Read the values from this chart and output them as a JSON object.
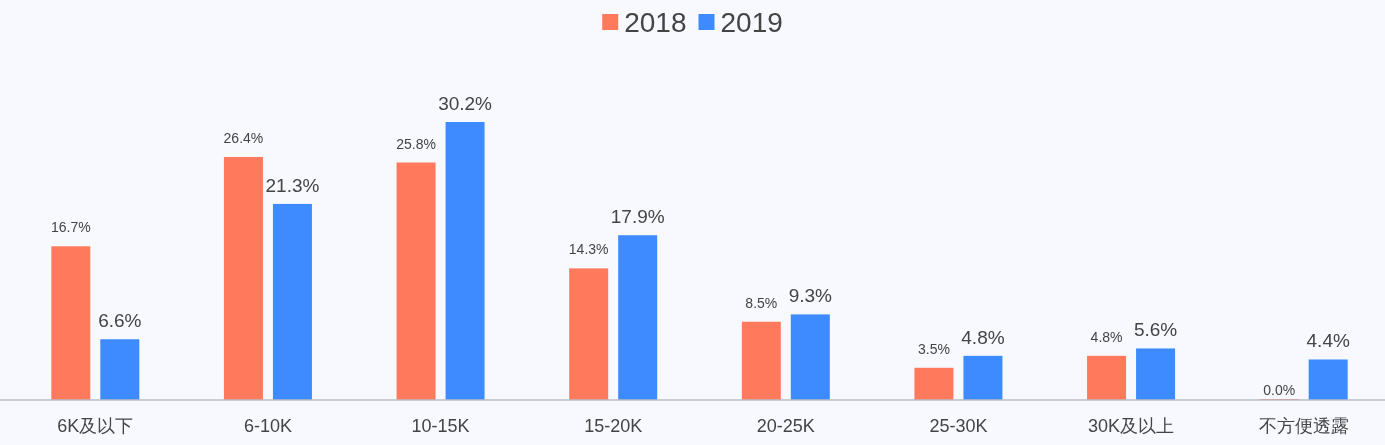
{
  "chart_data": {
    "type": "bar",
    "categories": [
      "6K及以下",
      "6-10K",
      "10-15K",
      "15-20K",
      "20-25K",
      "25-30K",
      "30K及以上",
      "不方便透露"
    ],
    "series": [
      {
        "name": "2018",
        "color": "#ff7a5c",
        "values": [
          16.7,
          26.4,
          25.8,
          14.3,
          8.5,
          3.5,
          4.8,
          0.0
        ],
        "value_labels": [
          "16.7%",
          "26.4%",
          "25.8%",
          "14.3%",
          "8.5%",
          "3.5%",
          "4.8%",
          "0.0%"
        ]
      },
      {
        "name": "2019",
        "color": "#3d8bff",
        "values": [
          6.6,
          21.3,
          30.2,
          17.9,
          9.3,
          4.8,
          5.6,
          4.4
        ],
        "value_labels": [
          "6.6%",
          "21.3%",
          "30.2%",
          "17.9%",
          "9.3%",
          "4.8%",
          "5.6%",
          "4.4%"
        ]
      }
    ],
    "legend": "top"
  }
}
